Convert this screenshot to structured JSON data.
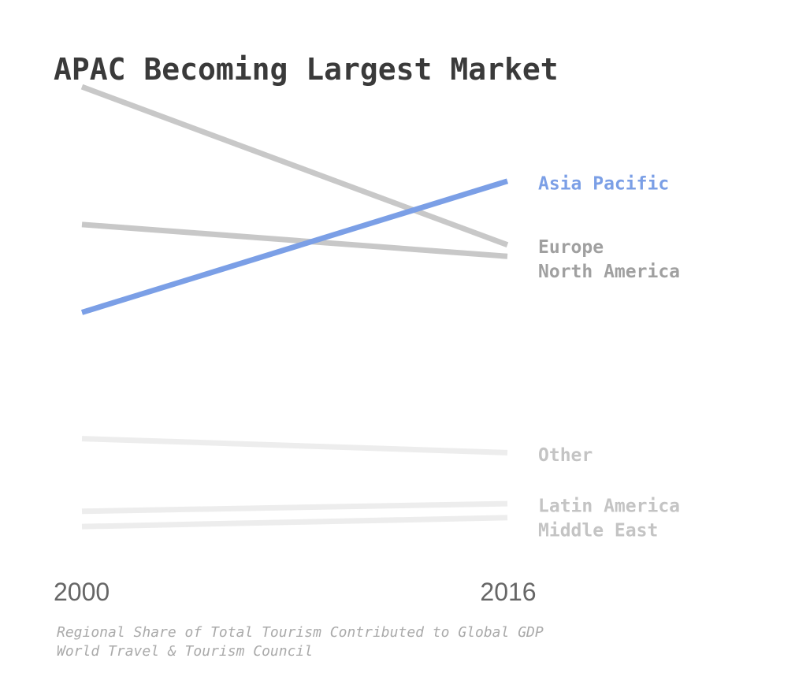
{
  "chart_data": {
    "type": "line",
    "title": "APAC Becoming Largest Market",
    "x": [
      "2000",
      "2016"
    ],
    "ylim": [
      0,
      40
    ],
    "grid": false,
    "legend": "none",
    "highlight_color": "#7b9fe6",
    "muted_color": "#c8c8c8",
    "faint_color": "#ededed",
    "series": [
      {
        "name": "Europe",
        "values": [
          36.9,
          24.5
        ],
        "style": "muted"
      },
      {
        "name": "North America",
        "values": [
          26.1,
          23.6
        ],
        "style": "muted"
      },
      {
        "name": "Asia Pacific",
        "values": [
          19.2,
          29.5
        ],
        "style": "highlight"
      },
      {
        "name": "Other",
        "values": [
          9.3,
          8.2
        ],
        "style": "faint"
      },
      {
        "name": "Latin America",
        "values": [
          3.6,
          4.2
        ],
        "style": "faint"
      },
      {
        "name": "Middle East",
        "values": [
          2.4,
          3.1
        ],
        "style": "faint"
      }
    ],
    "caption": [
      "Regional Share of Total Tourism Contributed to Global GDP",
      "World Travel & Tourism Council"
    ]
  }
}
